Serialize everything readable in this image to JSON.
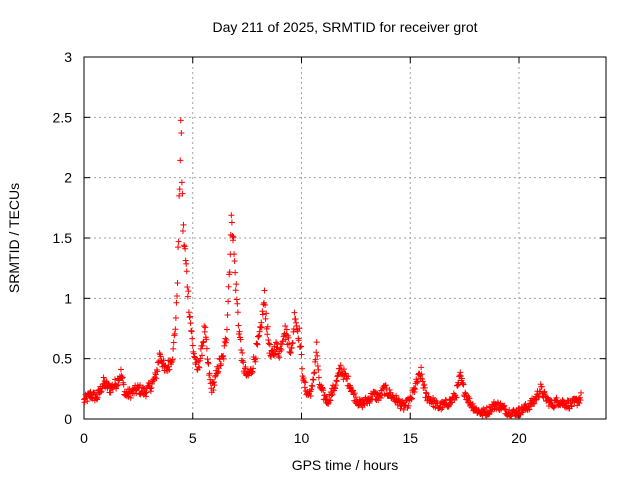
{
  "chart_data": {
    "type": "scatter",
    "title": "Day 211 of 2025, SRMTID for receiver grot",
    "xlabel": "GPS time / hours",
    "ylabel": "SRMTID / TECUs",
    "xlim": [
      0,
      24
    ],
    "ylim": [
      0,
      3
    ],
    "x_ticks": [
      "0",
      "5",
      "10",
      "15",
      "20"
    ],
    "y_ticks": [
      "0",
      "0.5",
      "1",
      "1.5",
      "2",
      "2.5",
      "3"
    ],
    "grid": true,
    "marker": "+",
    "color": "#ff0000",
    "series": [
      {
        "name": "SRMTID",
        "profile": [
          [
            0.0,
            0.15
          ],
          [
            0.3,
            0.2
          ],
          [
            0.6,
            0.18
          ],
          [
            0.9,
            0.3
          ],
          [
            1.2,
            0.25
          ],
          [
            1.5,
            0.3
          ],
          [
            1.7,
            0.38
          ],
          [
            1.9,
            0.2
          ],
          [
            2.2,
            0.22
          ],
          [
            2.5,
            0.25
          ],
          [
            2.8,
            0.22
          ],
          [
            3.1,
            0.28
          ],
          [
            3.3,
            0.35
          ],
          [
            3.5,
            0.55
          ],
          [
            3.7,
            0.4
          ],
          [
            3.9,
            0.45
          ],
          [
            4.1,
            0.55
          ],
          [
            4.25,
            0.9
          ],
          [
            4.35,
            1.5
          ],
          [
            4.45,
            2.45
          ],
          [
            4.55,
            1.6
          ],
          [
            4.7,
            1.25
          ],
          [
            4.85,
            0.9
          ],
          [
            5.0,
            0.6
          ],
          [
            5.2,
            0.4
          ],
          [
            5.4,
            0.55
          ],
          [
            5.55,
            0.75
          ],
          [
            5.7,
            0.45
          ],
          [
            5.85,
            0.25
          ],
          [
            6.0,
            0.3
          ],
          [
            6.2,
            0.45
          ],
          [
            6.4,
            0.5
          ],
          [
            6.55,
            0.7
          ],
          [
            6.7,
            1.3
          ],
          [
            6.8,
            1.7
          ],
          [
            6.95,
            1.2
          ],
          [
            7.1,
            0.8
          ],
          [
            7.3,
            0.45
          ],
          [
            7.5,
            0.35
          ],
          [
            7.7,
            0.4
          ],
          [
            7.9,
            0.55
          ],
          [
            8.1,
            0.7
          ],
          [
            8.3,
            1.0
          ],
          [
            8.45,
            0.7
          ],
          [
            8.6,
            0.5
          ],
          [
            8.8,
            0.6
          ],
          [
            9.0,
            0.55
          ],
          [
            9.2,
            0.75
          ],
          [
            9.4,
            0.65
          ],
          [
            9.55,
            0.55
          ],
          [
            9.7,
            0.9
          ],
          [
            9.8,
            0.75
          ],
          [
            9.9,
            0.7
          ],
          [
            10.0,
            0.5
          ],
          [
            10.1,
            0.3
          ],
          [
            10.3,
            0.2
          ],
          [
            10.5,
            0.25
          ],
          [
            10.7,
            0.6
          ],
          [
            10.8,
            0.3
          ],
          [
            11.0,
            0.2
          ],
          [
            11.2,
            0.15
          ],
          [
            11.4,
            0.22
          ],
          [
            11.6,
            0.3
          ],
          [
            11.8,
            0.42
          ],
          [
            12.0,
            0.35
          ],
          [
            12.2,
            0.3
          ],
          [
            12.4,
            0.2
          ],
          [
            12.7,
            0.12
          ],
          [
            13.0,
            0.15
          ],
          [
            13.3,
            0.2
          ],
          [
            13.6,
            0.18
          ],
          [
            13.8,
            0.25
          ],
          [
            14.1,
            0.2
          ],
          [
            14.4,
            0.15
          ],
          [
            14.7,
            0.1
          ],
          [
            15.0,
            0.15
          ],
          [
            15.3,
            0.3
          ],
          [
            15.5,
            0.38
          ],
          [
            15.7,
            0.2
          ],
          [
            16.0,
            0.15
          ],
          [
            16.3,
            0.1
          ],
          [
            16.6,
            0.12
          ],
          [
            16.9,
            0.15
          ],
          [
            17.1,
            0.2
          ],
          [
            17.3,
            0.35
          ],
          [
            17.45,
            0.25
          ],
          [
            17.7,
            0.15
          ],
          [
            18.0,
            0.08
          ],
          [
            18.3,
            0.05
          ],
          [
            18.6,
            0.07
          ],
          [
            18.9,
            0.12
          ],
          [
            19.2,
            0.1
          ],
          [
            19.5,
            0.06
          ],
          [
            19.8,
            0.05
          ],
          [
            20.1,
            0.07
          ],
          [
            20.4,
            0.1
          ],
          [
            20.7,
            0.15
          ],
          [
            21.0,
            0.25
          ],
          [
            21.2,
            0.18
          ],
          [
            21.5,
            0.12
          ],
          [
            21.8,
            0.15
          ],
          [
            22.1,
            0.13
          ],
          [
            22.4,
            0.12
          ],
          [
            22.7,
            0.15
          ],
          [
            22.85,
            0.18
          ]
        ],
        "x_step": 0.025,
        "noise": 0.08
      }
    ]
  }
}
